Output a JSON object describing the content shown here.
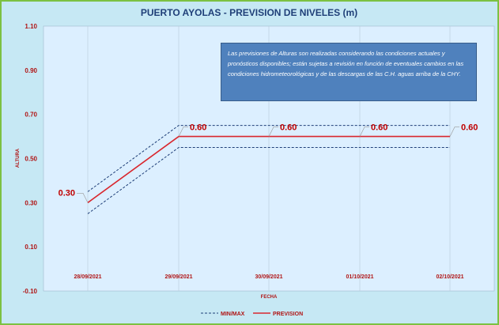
{
  "chart_data": {
    "type": "line",
    "title": "PUERTO AYOLAS - PREVISION DE NIVELES (m)",
    "xlabel": "FECHA",
    "ylabel": "ALTURA",
    "categories": [
      "28/09/2021",
      "29/09/2021",
      "30/09/2021",
      "01/10/2021",
      "02/10/2021"
    ],
    "ylim": [
      -0.1,
      1.1
    ],
    "yticks": [
      "1.10",
      "0.90",
      "0.70",
      "0.50",
      "0.30",
      "0.10",
      "-0.10"
    ],
    "series": [
      {
        "name": "PREVISION",
        "values": [
          0.3,
          0.6,
          0.6,
          0.6,
          0.6
        ],
        "color": "#d9272e",
        "style": "solid",
        "labels": [
          "0.30",
          "0.60",
          "0.60",
          "0.60",
          "0.60"
        ]
      },
      {
        "name": "MIN/MAX",
        "upper": [
          0.35,
          0.65,
          0.65,
          0.65,
          0.65
        ],
        "lower": [
          0.25,
          0.55,
          0.55,
          0.55,
          0.55
        ],
        "color": "#1f3f78",
        "style": "dashed"
      }
    ],
    "grid": "vertical",
    "legend_position": "bottom",
    "annotation": "Las previsiones de Alturas son realizadas considerando las condiciones actuales y pronósticos disponibles;  están sujetas a revisión en función de eventuales cambios en las condiciones hidrometeorológicas y de las descargas de las C.H. aguas arriba de la CHY."
  }
}
